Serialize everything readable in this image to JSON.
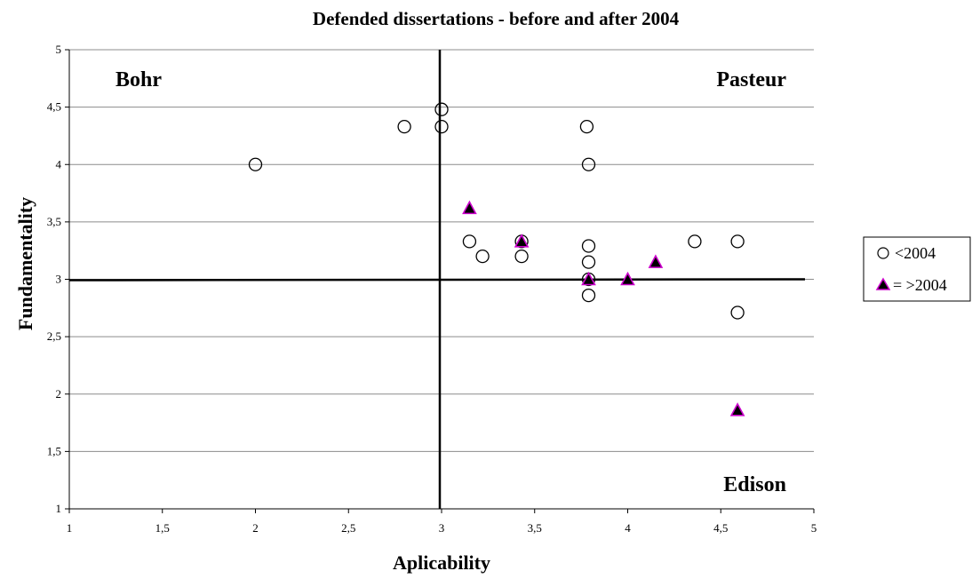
{
  "chart_data": {
    "type": "scatter",
    "title": "Defended dissertations - before and after 2004",
    "xlabel": "Aplicability",
    "ylabel": "Fundamentality",
    "xlim": [
      1,
      5
    ],
    "ylim": [
      1,
      5
    ],
    "x_ticks": [
      "1",
      "1,5",
      "2",
      "2,5",
      "3",
      "3,5",
      "4",
      "4,5",
      "5"
    ],
    "y_ticks": [
      "1",
      "1,5",
      "2",
      "2,5",
      "3",
      "3,5",
      "4",
      "4,5",
      "5"
    ],
    "grid": "horizontal",
    "legend_position": "right",
    "reference_lines": {
      "x": 3,
      "y": 3
    },
    "quadrant_labels": {
      "top_left": "Bohr",
      "top_right": "Pasteur",
      "bottom_right": "Edison"
    },
    "series": [
      {
        "name": "<2004",
        "marker": "open-circle",
        "color": "#000000",
        "points": [
          [
            2.0,
            4.0
          ],
          [
            2.8,
            4.33
          ],
          [
            3.0,
            4.48
          ],
          [
            3.0,
            4.33
          ],
          [
            3.78,
            4.33
          ],
          [
            3.79,
            4.0
          ],
          [
            3.15,
            3.33
          ],
          [
            3.22,
            3.2
          ],
          [
            3.43,
            3.33
          ],
          [
            3.43,
            3.2
          ],
          [
            3.79,
            3.29
          ],
          [
            3.79,
            3.15
          ],
          [
            3.79,
            3.0
          ],
          [
            3.79,
            2.86
          ],
          [
            4.36,
            3.33
          ],
          [
            4.59,
            3.33
          ],
          [
            4.59,
            2.71
          ]
        ]
      },
      {
        "name": "= >2004",
        "marker": "filled-triangle",
        "color": "#000000",
        "edge_color": "#cc00cc",
        "points": [
          [
            3.15,
            3.62
          ],
          [
            3.43,
            3.33
          ],
          [
            3.79,
            3.0
          ],
          [
            4.0,
            3.0
          ],
          [
            4.15,
            3.15
          ],
          [
            4.59,
            1.86
          ]
        ]
      }
    ]
  }
}
